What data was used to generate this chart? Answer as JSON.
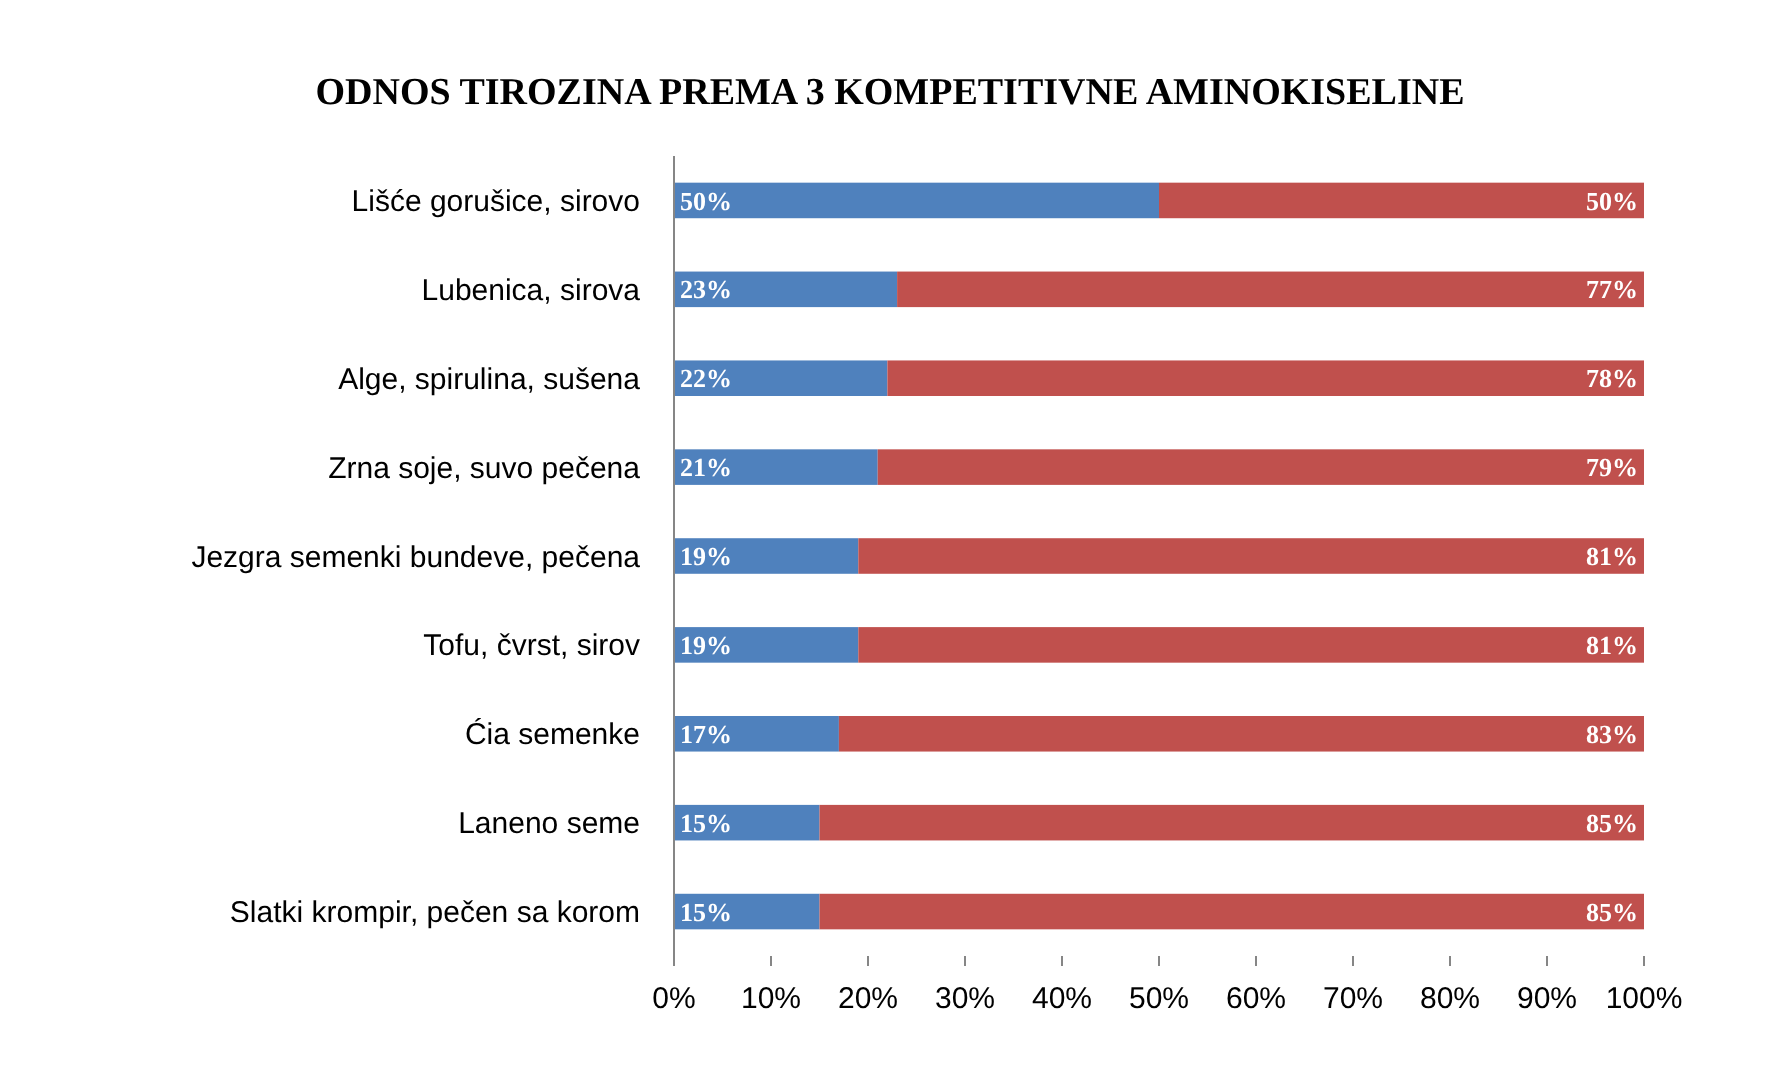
{
  "chart_data": {
    "type": "bar",
    "title": "ODNOS TIROZINA PREMA 3 KOMPETITIVNE AMINOKISELINE",
    "orientation": "horizontal",
    "stacked": true,
    "categories": [
      "Lišće gorušice, sirovo",
      "Lubenica, sirova",
      "Alge, spirulina, sušena",
      "Zrna soje, suvo pečena",
      "Jezgra semenki bundeve, pečena",
      "Tofu, čvrst, sirov",
      "Ćia semenke",
      "Laneno seme",
      "Slatki krompir, pečen sa korom"
    ],
    "series": [
      {
        "color": "#4f81bd",
        "values": [
          50,
          23,
          22,
          21,
          19,
          19,
          17,
          15,
          15
        ],
        "value_labels": [
          "50%",
          "23%",
          "22%",
          "21%",
          "19%",
          "19%",
          "17%",
          "15%",
          "15%"
        ]
      },
      {
        "color": "#c0504d",
        "values": [
          50,
          77,
          78,
          79,
          81,
          81,
          83,
          85,
          85
        ],
        "value_labels": [
          "50%",
          "77%",
          "78%",
          "79%",
          "81%",
          "81%",
          "83%",
          "85%",
          "85%"
        ]
      }
    ],
    "xlim": [
      0,
      100
    ],
    "xticks": [
      {
        "value": 0,
        "label": "0%"
      },
      {
        "value": 10,
        "label": "10%"
      },
      {
        "value": 20,
        "label": "20%"
      },
      {
        "value": 30,
        "label": "30%"
      },
      {
        "value": 40,
        "label": "40%"
      },
      {
        "value": 50,
        "label": "50%"
      },
      {
        "value": 60,
        "label": "60%"
      },
      {
        "value": 70,
        "label": "70%"
      },
      {
        "value": 80,
        "label": "80%"
      },
      {
        "value": 90,
        "label": "90%"
      },
      {
        "value": 100,
        "label": "100%"
      }
    ]
  }
}
